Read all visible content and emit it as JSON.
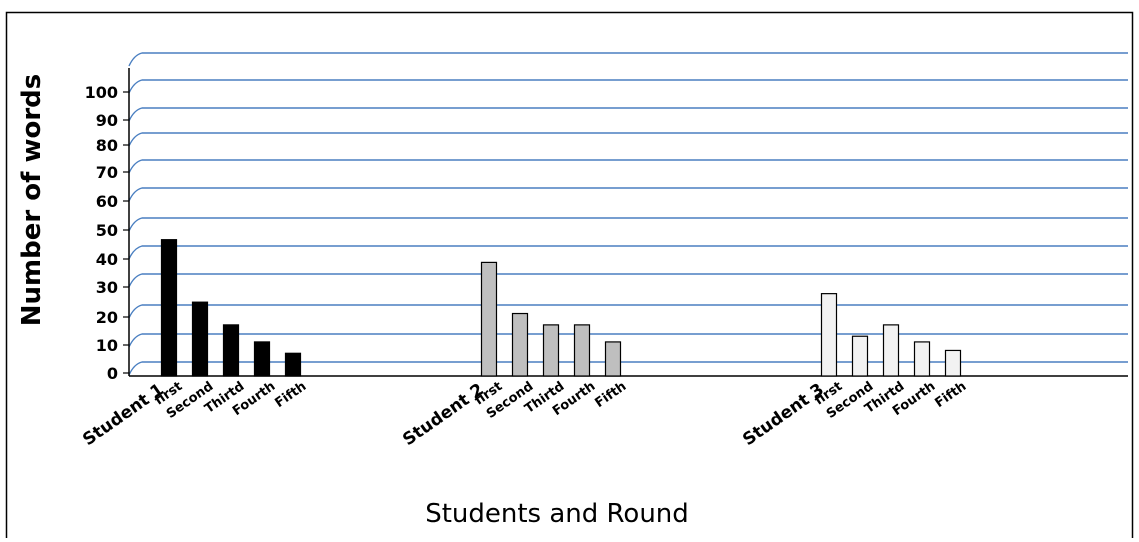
{
  "chart_data": {
    "type": "bar",
    "xlabel": "Students and Round",
    "ylabel": "Number of words",
    "ylim": [
      0,
      100
    ],
    "yticks": [
      0,
      10,
      20,
      30,
      40,
      50,
      60,
      70,
      80,
      90,
      100
    ],
    "grid": true,
    "legend": "none",
    "groups": [
      {
        "name": "Student 1",
        "color": "#000000",
        "categories": [
          "first",
          "Second",
          "Thirtd",
          "Fourth",
          "Fifth"
        ],
        "values": [
          48,
          26,
          18,
          12,
          8
        ]
      },
      {
        "name": "Student 2",
        "color": "#bfbfbf",
        "categories": [
          "first",
          "Second",
          "Thirtd",
          "Fourth",
          "Fifth"
        ],
        "values": [
          40,
          22,
          18,
          18,
          12
        ]
      },
      {
        "name": "Student 3",
        "color": "#f2f2f2",
        "categories": [
          "first",
          "Second",
          "Thirtd",
          "Fourth",
          "Fifth"
        ],
        "values": [
          29,
          14,
          18,
          12,
          9
        ]
      }
    ]
  }
}
